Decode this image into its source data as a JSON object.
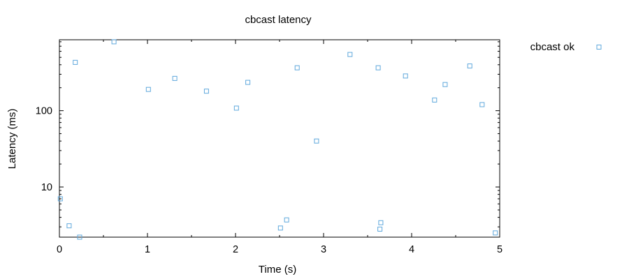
{
  "chart_data": {
    "type": "scatter",
    "title": "cbcast latency",
    "xlabel": "Time (s)",
    "ylabel": "Latency (ms)",
    "xlim": [
      0,
      5
    ],
    "ylim": [
      2.2,
      850
    ],
    "yscale": "log",
    "grid": false,
    "legend_position": "top-right-outside",
    "x_ticks": [
      0,
      1,
      2,
      3,
      4,
      5
    ],
    "y_ticks": [
      10,
      100
    ],
    "marker_color": "#5fa8dc",
    "marker": "open-square",
    "series": [
      {
        "name": "cbcast ok",
        "points": [
          {
            "x": 0.01,
            "y": 7.0
          },
          {
            "x": 0.11,
            "y": 3.1
          },
          {
            "x": 0.18,
            "y": 430
          },
          {
            "x": 0.23,
            "y": 2.2
          },
          {
            "x": 0.62,
            "y": 800
          },
          {
            "x": 1.01,
            "y": 190
          },
          {
            "x": 1.31,
            "y": 265
          },
          {
            "x": 1.67,
            "y": 180
          },
          {
            "x": 2.01,
            "y": 108
          },
          {
            "x": 2.14,
            "y": 235
          },
          {
            "x": 2.51,
            "y": 2.9
          },
          {
            "x": 2.58,
            "y": 3.7
          },
          {
            "x": 2.7,
            "y": 365
          },
          {
            "x": 2.92,
            "y": 40
          },
          {
            "x": 3.3,
            "y": 545
          },
          {
            "x": 3.62,
            "y": 365
          },
          {
            "x": 3.64,
            "y": 2.8
          },
          {
            "x": 3.65,
            "y": 3.4
          },
          {
            "x": 3.93,
            "y": 285
          },
          {
            "x": 4.26,
            "y": 138
          },
          {
            "x": 4.38,
            "y": 220
          },
          {
            "x": 4.66,
            "y": 385
          },
          {
            "x": 4.8,
            "y": 120
          },
          {
            "x": 4.95,
            "y": 2.5
          }
        ]
      }
    ]
  }
}
